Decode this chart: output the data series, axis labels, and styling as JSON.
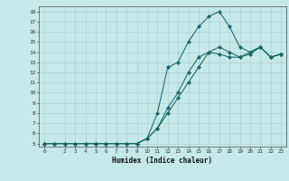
{
  "title": "",
  "xlabel": "Humidex (Indice chaleur)",
  "bg_color": "#c5e8e8",
  "grid_color": "#b0d0d0",
  "line_color": "#1a6868",
  "xlim": [
    -0.5,
    23.5
  ],
  "ylim": [
    4.7,
    18.5
  ],
  "xticks": [
    0,
    2,
    3,
    4,
    5,
    6,
    7,
    8,
    9,
    10,
    11,
    12,
    13,
    14,
    15,
    16,
    17,
    18,
    19,
    20,
    21,
    22,
    23
  ],
  "yticks": [
    5,
    6,
    7,
    8,
    9,
    10,
    11,
    12,
    13,
    14,
    15,
    16,
    17,
    18
  ],
  "line1_x": [
    0,
    1,
    2,
    3,
    4,
    5,
    6,
    7,
    8,
    9,
    10,
    11,
    12,
    13,
    14,
    15,
    16,
    17,
    18,
    19,
    20,
    21,
    22,
    23
  ],
  "line1_y": [
    5,
    5,
    5,
    5,
    5,
    5,
    5,
    5,
    5,
    5,
    5.5,
    6.5,
    8,
    9.5,
    11,
    12.5,
    14,
    14.5,
    14.0,
    13.5,
    14.0,
    14.5,
    13.5,
    13.8
  ],
  "line2_x": [
    0,
    1,
    2,
    3,
    4,
    5,
    6,
    7,
    8,
    9,
    10,
    11,
    12,
    13,
    14,
    15,
    16,
    17,
    18,
    19,
    20,
    21,
    22,
    23
  ],
  "line2_y": [
    5,
    5,
    5,
    5,
    5,
    5,
    5,
    5,
    5,
    5,
    5.5,
    8,
    12.5,
    13,
    15,
    16.5,
    17.5,
    18.0,
    16.5,
    14.5,
    14.0,
    14.5,
    13.5,
    13.8
  ],
  "line3_x": [
    0,
    1,
    2,
    3,
    4,
    5,
    6,
    7,
    8,
    9,
    10,
    11,
    12,
    13,
    14,
    15,
    16,
    17,
    18,
    19,
    20,
    21,
    22,
    23
  ],
  "line3_y": [
    5,
    5,
    5,
    5,
    5,
    5,
    5,
    5,
    5,
    5,
    5.5,
    6.5,
    8.5,
    10,
    12,
    13.5,
    14.0,
    13.8,
    13.5,
    13.5,
    13.8,
    14.5,
    13.5,
    13.8
  ]
}
